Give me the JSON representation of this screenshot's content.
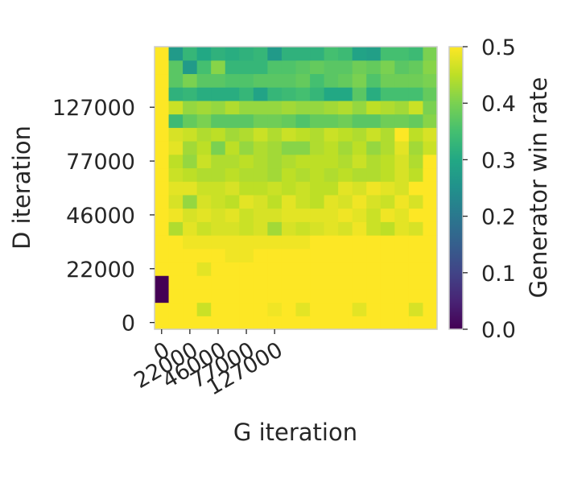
{
  "chart_data": {
    "type": "heatmap",
    "xlabel": "G iteration",
    "ylabel": "D iteration",
    "x_tick_labels": [
      "0",
      "22000",
      "46000",
      "77000",
      "127000"
    ],
    "x_tick_columns": [
      0,
      2,
      4,
      6,
      8
    ],
    "y_tick_labels": [
      "0",
      "22000",
      "46000",
      "77000",
      "127000"
    ],
    "y_tick_rows": [
      0,
      4,
      8,
      12,
      16
    ],
    "colorbar": {
      "label": "Generator win rate",
      "colormap": "viridis",
      "min": 0.0,
      "max": 0.5,
      "ticks": [
        "0.0",
        "0.1",
        "0.2",
        "0.3",
        "0.4",
        "0.5"
      ]
    },
    "columns": 20,
    "rows_bottom_to_top": [
      [
        0.5,
        0.5,
        0.5,
        0.5,
        0.5,
        0.5,
        0.5,
        0.5,
        0.5,
        0.5,
        0.5,
        0.5,
        0.5,
        0.5,
        0.5,
        0.5,
        0.5,
        0.5,
        0.5,
        0.5
      ],
      [
        0.5,
        0.5,
        0.5,
        0.46,
        0.5,
        0.5,
        0.5,
        0.5,
        0.49,
        0.5,
        0.48,
        0.5,
        0.5,
        0.5,
        0.48,
        0.5,
        0.5,
        0.5,
        0.47,
        0.5
      ],
      [
        0.0,
        0.5,
        0.5,
        0.5,
        0.5,
        0.5,
        0.5,
        0.5,
        0.5,
        0.5,
        0.5,
        0.5,
        0.5,
        0.5,
        0.5,
        0.5,
        0.5,
        0.5,
        0.5,
        0.5
      ],
      [
        0.0,
        0.5,
        0.5,
        0.5,
        0.5,
        0.5,
        0.5,
        0.5,
        0.5,
        0.5,
        0.5,
        0.5,
        0.5,
        0.5,
        0.5,
        0.5,
        0.5,
        0.5,
        0.5,
        0.5
      ],
      [
        0.5,
        0.5,
        0.5,
        0.48,
        0.5,
        0.5,
        0.5,
        0.5,
        0.5,
        0.5,
        0.5,
        0.5,
        0.5,
        0.5,
        0.5,
        0.5,
        0.5,
        0.5,
        0.5,
        0.5
      ],
      [
        0.5,
        0.5,
        0.5,
        0.5,
        0.5,
        0.49,
        0.49,
        0.5,
        0.5,
        0.5,
        0.5,
        0.5,
        0.5,
        0.5,
        0.5,
        0.5,
        0.5,
        0.5,
        0.5,
        0.5
      ],
      [
        0.5,
        0.5,
        0.49,
        0.49,
        0.49,
        0.49,
        0.49,
        0.49,
        0.49,
        0.49,
        0.49,
        0.5,
        0.5,
        0.5,
        0.5,
        0.5,
        0.5,
        0.5,
        0.5,
        0.5
      ],
      [
        0.5,
        0.44,
        0.48,
        0.46,
        0.47,
        0.47,
        0.46,
        0.47,
        0.43,
        0.47,
        0.46,
        0.47,
        0.48,
        0.47,
        0.49,
        0.46,
        0.45,
        0.48,
        0.47,
        0.5
      ],
      [
        0.5,
        0.49,
        0.47,
        0.48,
        0.47,
        0.48,
        0.46,
        0.47,
        0.47,
        0.48,
        0.48,
        0.48,
        0.48,
        0.49,
        0.48,
        0.46,
        0.49,
        0.48,
        0.5,
        0.5
      ],
      [
        0.5,
        0.47,
        0.42,
        0.47,
        0.46,
        0.45,
        0.48,
        0.47,
        0.45,
        0.48,
        0.46,
        0.45,
        0.48,
        0.47,
        0.49,
        0.47,
        0.46,
        0.49,
        0.47,
        0.5
      ],
      [
        0.5,
        0.48,
        0.48,
        0.46,
        0.46,
        0.47,
        0.45,
        0.45,
        0.46,
        0.45,
        0.46,
        0.45,
        0.45,
        0.48,
        0.47,
        0.49,
        0.48,
        0.47,
        0.5,
        0.5
      ],
      [
        0.5,
        0.46,
        0.45,
        0.44,
        0.44,
        0.45,
        0.44,
        0.44,
        0.43,
        0.45,
        0.44,
        0.45,
        0.44,
        0.45,
        0.44,
        0.44,
        0.45,
        0.47,
        0.45,
        0.5
      ],
      [
        0.5,
        0.45,
        0.42,
        0.46,
        0.44,
        0.44,
        0.45,
        0.44,
        0.43,
        0.44,
        0.45,
        0.45,
        0.45,
        0.44,
        0.46,
        0.44,
        0.45,
        0.47,
        0.44,
        0.5
      ],
      [
        0.5,
        0.48,
        0.43,
        0.45,
        0.4,
        0.45,
        0.42,
        0.44,
        0.43,
        0.41,
        0.41,
        0.44,
        0.45,
        0.43,
        0.45,
        0.42,
        0.44,
        0.48,
        0.43,
        0.46
      ],
      [
        0.5,
        0.47,
        0.46,
        0.44,
        0.45,
        0.43,
        0.44,
        0.46,
        0.44,
        0.46,
        0.45,
        0.44,
        0.46,
        0.45,
        0.44,
        0.46,
        0.44,
        0.5,
        0.45,
        0.47
      ],
      [
        0.5,
        0.34,
        0.38,
        0.4,
        0.37,
        0.37,
        0.37,
        0.39,
        0.39,
        0.38,
        0.36,
        0.38,
        0.38,
        0.39,
        0.37,
        0.37,
        0.39,
        0.39,
        0.38,
        0.41
      ],
      [
        0.5,
        0.46,
        0.42,
        0.43,
        0.42,
        0.44,
        0.42,
        0.42,
        0.42,
        0.43,
        0.42,
        0.42,
        0.43,
        0.44,
        0.42,
        0.45,
        0.44,
        0.43,
        0.46,
        0.4
      ],
      [
        0.5,
        0.32,
        0.33,
        0.31,
        0.31,
        0.31,
        0.33,
        0.29,
        0.33,
        0.34,
        0.35,
        0.33,
        0.3,
        0.3,
        0.37,
        0.31,
        0.35,
        0.35,
        0.35,
        0.38
      ],
      [
        0.5,
        0.37,
        0.4,
        0.37,
        0.37,
        0.36,
        0.36,
        0.37,
        0.37,
        0.37,
        0.38,
        0.35,
        0.37,
        0.38,
        0.4,
        0.36,
        0.39,
        0.39,
        0.39,
        0.4
      ],
      [
        0.5,
        0.37,
        0.27,
        0.35,
        0.41,
        0.33,
        0.33,
        0.33,
        0.36,
        0.36,
        0.37,
        0.38,
        0.37,
        0.37,
        0.39,
        0.38,
        0.4,
        0.37,
        0.38,
        0.41
      ],
      [
        0.5,
        0.27,
        0.33,
        0.3,
        0.32,
        0.31,
        0.32,
        0.33,
        0.27,
        0.32,
        0.32,
        0.32,
        0.35,
        0.34,
        0.29,
        0.28,
        0.35,
        0.35,
        0.34,
        0.4
      ]
    ]
  }
}
